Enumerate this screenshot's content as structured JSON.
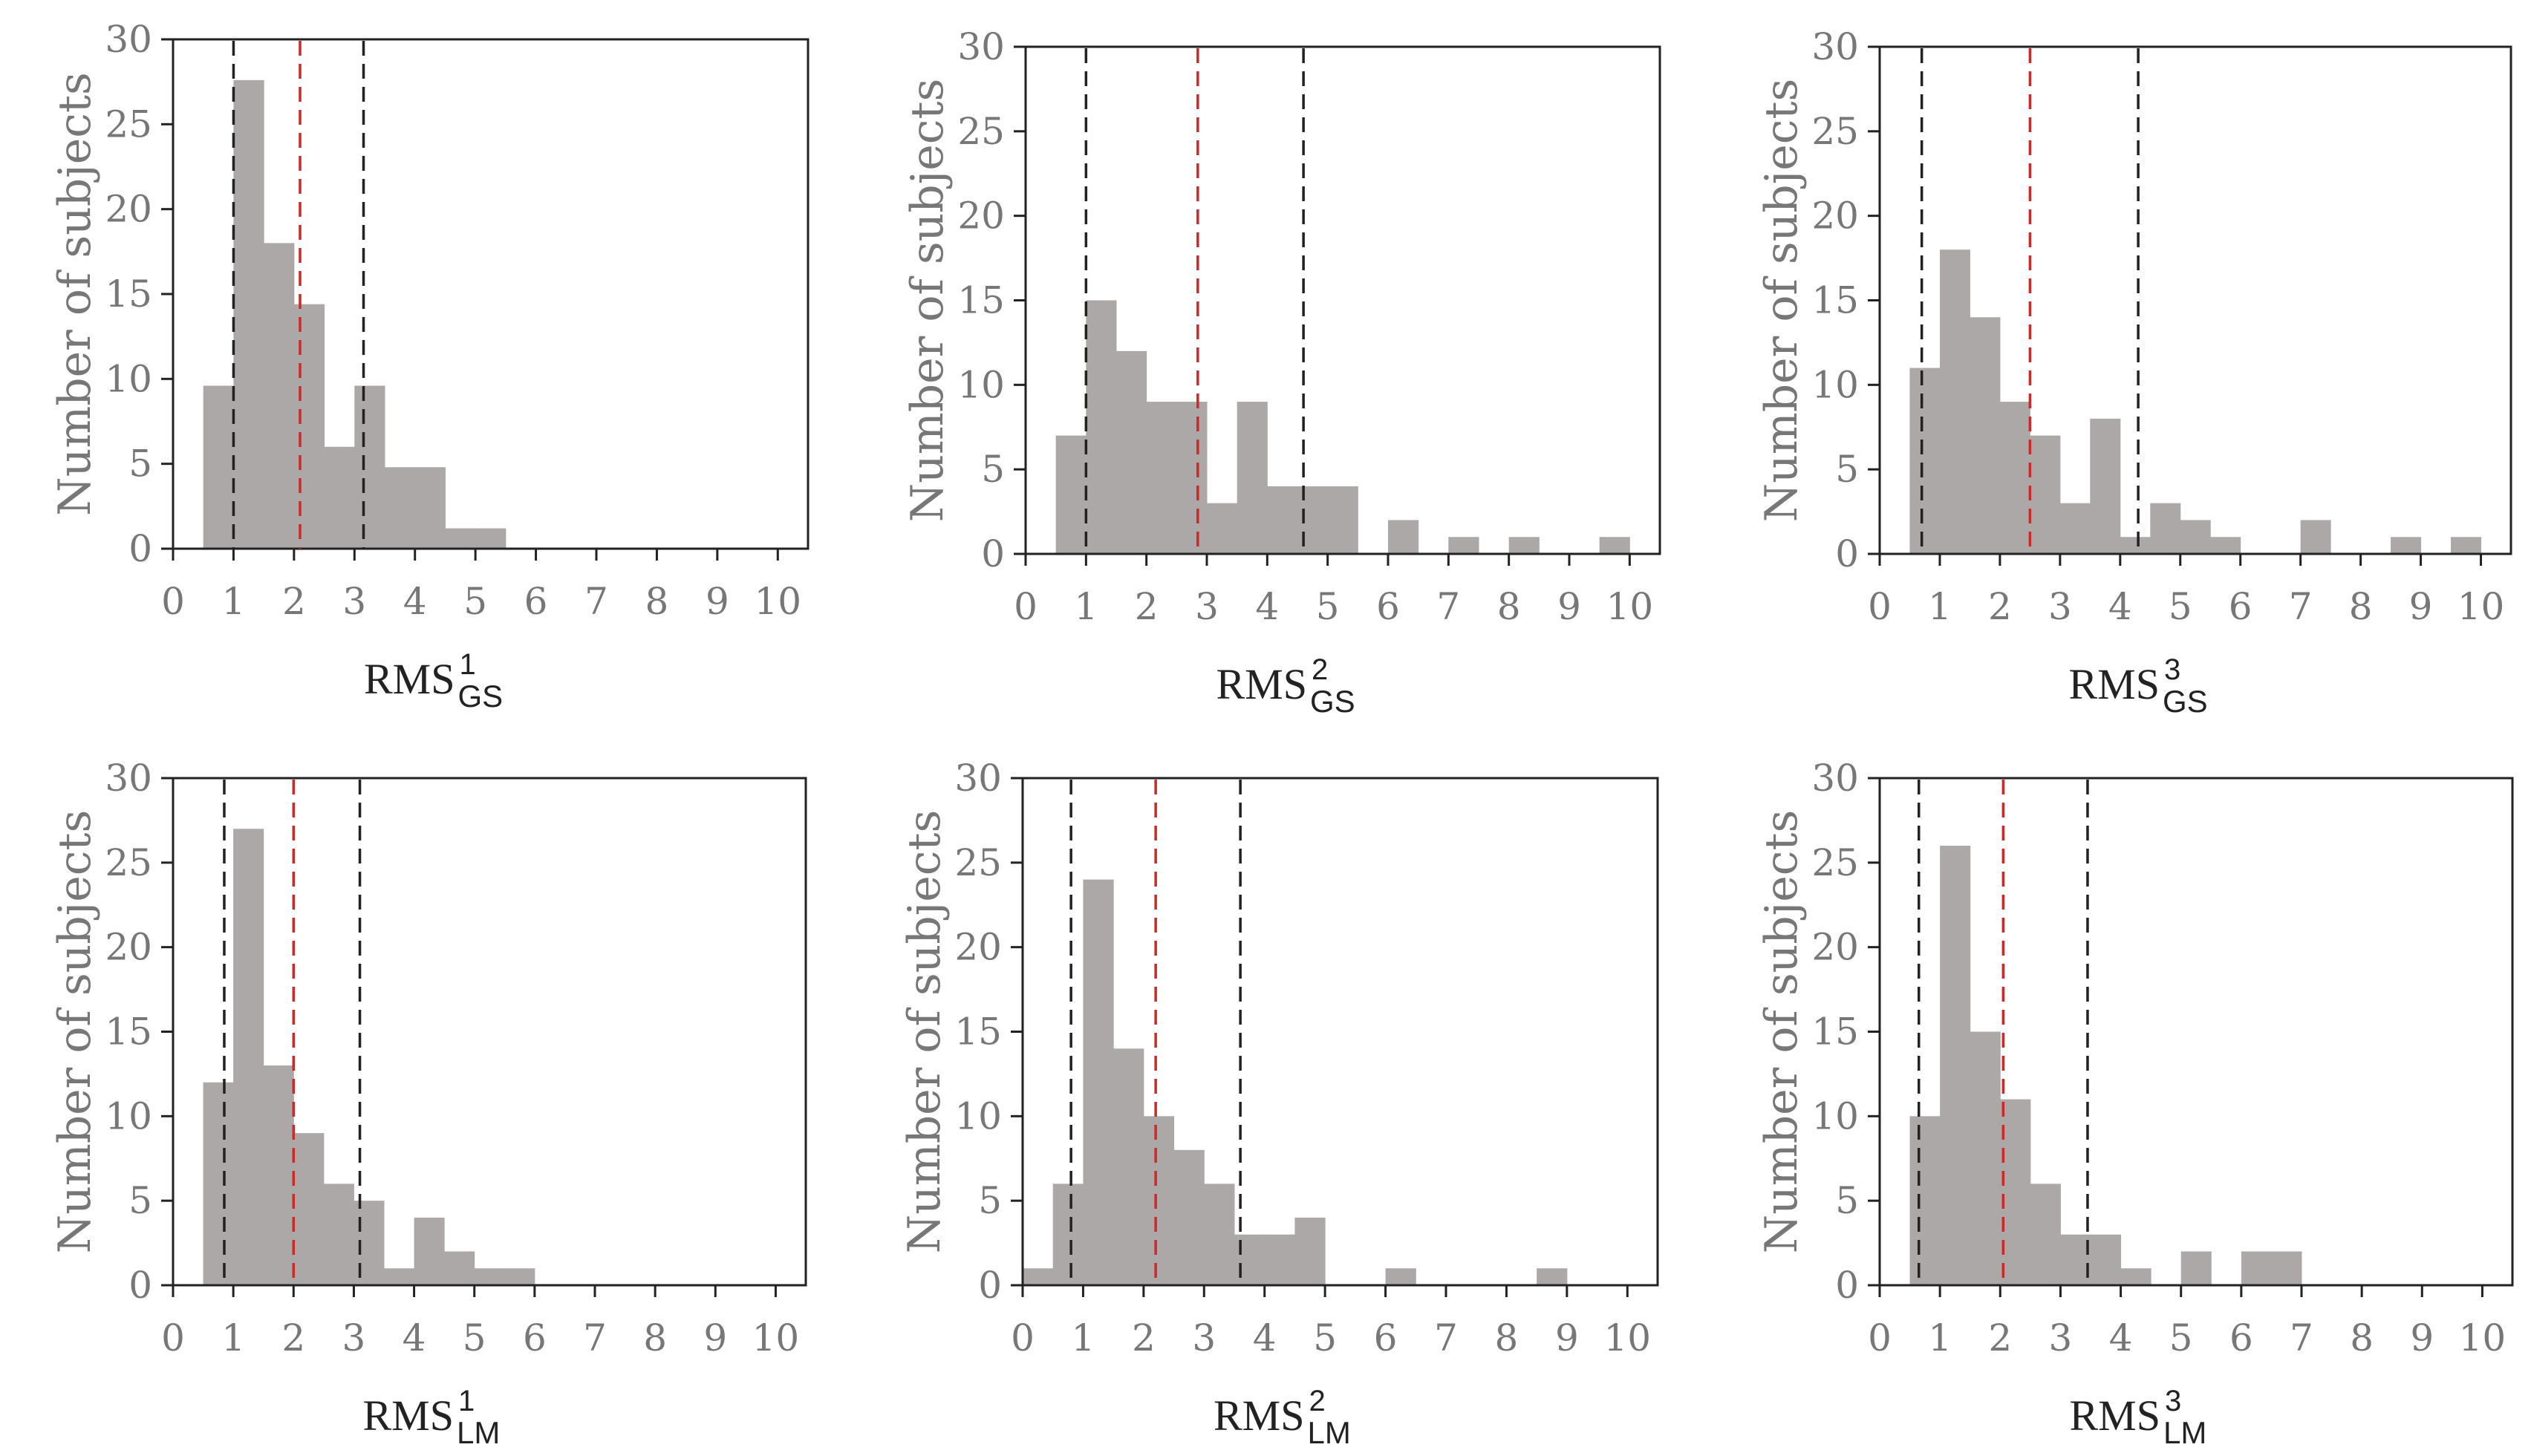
{
  "colors": {
    "bar": "#aba8a7",
    "frame": "#222222",
    "tick_text": "#777777",
    "mean_line": "#cc2a2a",
    "ci_line": "#222222"
  },
  "chart_data": [
    {
      "id": "gs1",
      "type": "bar",
      "xlabel_base": "RMS",
      "xlabel_sup": "1",
      "xlabel_sub": "GS",
      "ylabel": "Number of subjects",
      "xlim": [
        0,
        10.5
      ],
      "ylim": [
        0,
        30
      ],
      "xticks": [
        "0",
        "1",
        "2",
        "3",
        "4",
        "5",
        "6",
        "7",
        "8",
        "9",
        "10"
      ],
      "yticks": [
        "0",
        "5",
        "10",
        "15",
        "20",
        "25",
        "30"
      ],
      "bin_width": 0.5,
      "bins": [
        {
          "x": 0.5,
          "count": 9.6
        },
        {
          "x": 1.0,
          "count": 27.6
        },
        {
          "x": 1.5,
          "count": 18
        },
        {
          "x": 2.0,
          "count": 14.4
        },
        {
          "x": 2.5,
          "count": 6
        },
        {
          "x": 3.0,
          "count": 9.6
        },
        {
          "x": 3.5,
          "count": 4.8
        },
        {
          "x": 4.0,
          "count": 4.8
        },
        {
          "x": 4.5,
          "count": 1.2
        },
        {
          "x": 5.0,
          "count": 1.2
        }
      ],
      "mean_line": 2.1,
      "ci_lines": [
        1.0,
        3.15
      ]
    },
    {
      "id": "gs2",
      "type": "bar",
      "xlabel_base": "RMS",
      "xlabel_sup": "2",
      "xlabel_sub": "GS",
      "ylabel": "Number of subjects",
      "xlim": [
        0,
        10.5
      ],
      "ylim": [
        0,
        30
      ],
      "xticks": [
        "0",
        "1",
        "2",
        "3",
        "4",
        "5",
        "6",
        "7",
        "8",
        "9",
        "10"
      ],
      "yticks": [
        "0",
        "5",
        "10",
        "15",
        "20",
        "25",
        "30"
      ],
      "bin_width": 0.5,
      "bins": [
        {
          "x": 0.5,
          "count": 7
        },
        {
          "x": 1.0,
          "count": 15
        },
        {
          "x": 1.5,
          "count": 12
        },
        {
          "x": 2.0,
          "count": 9
        },
        {
          "x": 2.5,
          "count": 9
        },
        {
          "x": 3.0,
          "count": 3
        },
        {
          "x": 3.5,
          "count": 9
        },
        {
          "x": 4.0,
          "count": 4
        },
        {
          "x": 4.5,
          "count": 4
        },
        {
          "x": 5.0,
          "count": 4
        },
        {
          "x": 6.0,
          "count": 2
        },
        {
          "x": 7.0,
          "count": 1
        },
        {
          "x": 8.0,
          "count": 1
        },
        {
          "x": 9.5,
          "count": 1
        }
      ],
      "mean_line": 2.85,
      "ci_lines": [
        1.0,
        4.6
      ]
    },
    {
      "id": "gs3",
      "type": "bar",
      "xlabel_base": "RMS",
      "xlabel_sup": "3",
      "xlabel_sub": "GS",
      "ylabel": "Number of subjects",
      "xlim": [
        0,
        10.5
      ],
      "ylim": [
        0,
        30
      ],
      "xticks": [
        "0",
        "1",
        "2",
        "3",
        "4",
        "5",
        "6",
        "7",
        "8",
        "9",
        "10"
      ],
      "yticks": [
        "0",
        "5",
        "10",
        "15",
        "20",
        "25",
        "30"
      ],
      "bin_width": 0.5,
      "bins": [
        {
          "x": 0.5,
          "count": 11
        },
        {
          "x": 1.0,
          "count": 18
        },
        {
          "x": 1.5,
          "count": 14
        },
        {
          "x": 2.0,
          "count": 9
        },
        {
          "x": 2.5,
          "count": 7
        },
        {
          "x": 3.0,
          "count": 3
        },
        {
          "x": 3.5,
          "count": 8
        },
        {
          "x": 4.0,
          "count": 1
        },
        {
          "x": 4.5,
          "count": 3
        },
        {
          "x": 5.0,
          "count": 2
        },
        {
          "x": 5.5,
          "count": 1
        },
        {
          "x": 7.0,
          "count": 2
        },
        {
          "x": 8.5,
          "count": 1
        },
        {
          "x": 9.5,
          "count": 1
        }
      ],
      "mean_line": 2.5,
      "ci_lines": [
        0.7,
        4.3
      ]
    },
    {
      "id": "lm1",
      "type": "bar",
      "xlabel_base": "RMS",
      "xlabel_sup": "1",
      "xlabel_sub": "LM",
      "ylabel": "Number of subjects",
      "xlim": [
        0,
        10.5
      ],
      "ylim": [
        0,
        30
      ],
      "xticks": [
        "0",
        "1",
        "2",
        "3",
        "4",
        "5",
        "6",
        "7",
        "8",
        "9",
        "10"
      ],
      "yticks": [
        "0",
        "5",
        "10",
        "15",
        "20",
        "25",
        "30"
      ],
      "bin_width": 0.5,
      "bins": [
        {
          "x": 0.5,
          "count": 12
        },
        {
          "x": 1.0,
          "count": 27
        },
        {
          "x": 1.5,
          "count": 13
        },
        {
          "x": 2.0,
          "count": 9
        },
        {
          "x": 2.5,
          "count": 6
        },
        {
          "x": 3.0,
          "count": 5
        },
        {
          "x": 3.5,
          "count": 1
        },
        {
          "x": 4.0,
          "count": 4
        },
        {
          "x": 4.5,
          "count": 2
        },
        {
          "x": 5.0,
          "count": 1
        },
        {
          "x": 5.5,
          "count": 1
        }
      ],
      "mean_line": 2.0,
      "ci_lines": [
        0.85,
        3.1
      ]
    },
    {
      "id": "lm2",
      "type": "bar",
      "xlabel_base": "RMS",
      "xlabel_sup": "2",
      "xlabel_sub": "LM",
      "ylabel": "Number of subjects",
      "xlim": [
        0,
        10.5
      ],
      "ylim": [
        0,
        30
      ],
      "xticks": [
        "0",
        "1",
        "2",
        "3",
        "4",
        "5",
        "6",
        "7",
        "8",
        "9",
        "10"
      ],
      "yticks": [
        "0",
        "5",
        "10",
        "15",
        "20",
        "25",
        "30"
      ],
      "bin_width": 0.5,
      "bins": [
        {
          "x": 0.0,
          "count": 1
        },
        {
          "x": 0.5,
          "count": 6
        },
        {
          "x": 1.0,
          "count": 24
        },
        {
          "x": 1.5,
          "count": 14
        },
        {
          "x": 2.0,
          "count": 10
        },
        {
          "x": 2.5,
          "count": 8
        },
        {
          "x": 3.0,
          "count": 6
        },
        {
          "x": 3.5,
          "count": 3
        },
        {
          "x": 4.0,
          "count": 3
        },
        {
          "x": 4.5,
          "count": 4
        },
        {
          "x": 6.0,
          "count": 1
        },
        {
          "x": 8.5,
          "count": 1
        }
      ],
      "mean_line": 2.2,
      "ci_lines": [
        0.8,
        3.6
      ]
    },
    {
      "id": "lm3",
      "type": "bar",
      "xlabel_base": "RMS",
      "xlabel_sup": "3",
      "xlabel_sub": "LM",
      "ylabel": "Number of subjects",
      "xlim": [
        0,
        10.5
      ],
      "ylim": [
        0,
        30
      ],
      "xticks": [
        "0",
        "1",
        "2",
        "3",
        "4",
        "5",
        "6",
        "7",
        "8",
        "9",
        "10"
      ],
      "yticks": [
        "0",
        "5",
        "10",
        "15",
        "20",
        "25",
        "30"
      ],
      "bin_width": 0.5,
      "bins": [
        {
          "x": 0.5,
          "count": 10
        },
        {
          "x": 1.0,
          "count": 26
        },
        {
          "x": 1.5,
          "count": 15
        },
        {
          "x": 2.0,
          "count": 11
        },
        {
          "x": 2.5,
          "count": 6
        },
        {
          "x": 3.0,
          "count": 3
        },
        {
          "x": 3.5,
          "count": 3
        },
        {
          "x": 4.0,
          "count": 1
        },
        {
          "x": 5.0,
          "count": 2
        },
        {
          "x": 6.0,
          "count": 2
        },
        {
          "x": 6.5,
          "count": 2
        }
      ],
      "mean_line": 2.05,
      "ci_lines": [
        0.65,
        3.45
      ]
    }
  ]
}
